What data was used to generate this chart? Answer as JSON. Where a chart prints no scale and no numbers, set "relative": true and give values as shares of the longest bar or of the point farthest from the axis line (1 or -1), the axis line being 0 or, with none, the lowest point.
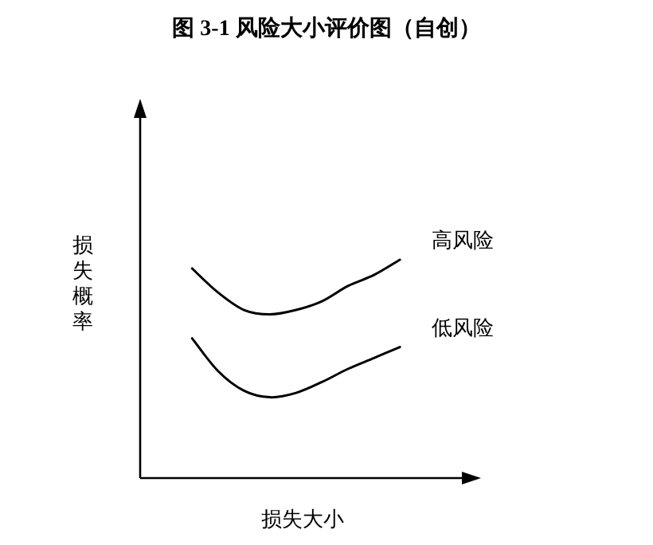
{
  "chart_data": {
    "type": "line",
    "title": "图 3-1 风险大小评价图（自创）",
    "xlabel": "损失大小",
    "ylabel": "损失概率",
    "relative": true,
    "categories": [
      null,
      null,
      null,
      null,
      null,
      null,
      null,
      null,
      null
    ],
    "series": [
      {
        "name": "高风险",
        "color": "#000000",
        "values": [
          0.96,
          0.85,
          0.77,
          0.75,
          0.77,
          0.81,
          0.88,
          0.93,
          1.0
        ]
      },
      {
        "name": "低风险",
        "color": "#000000",
        "values": [
          0.64,
          0.49,
          0.4,
          0.37,
          0.39,
          0.44,
          0.5,
          0.55,
          0.6
        ]
      }
    ]
  }
}
